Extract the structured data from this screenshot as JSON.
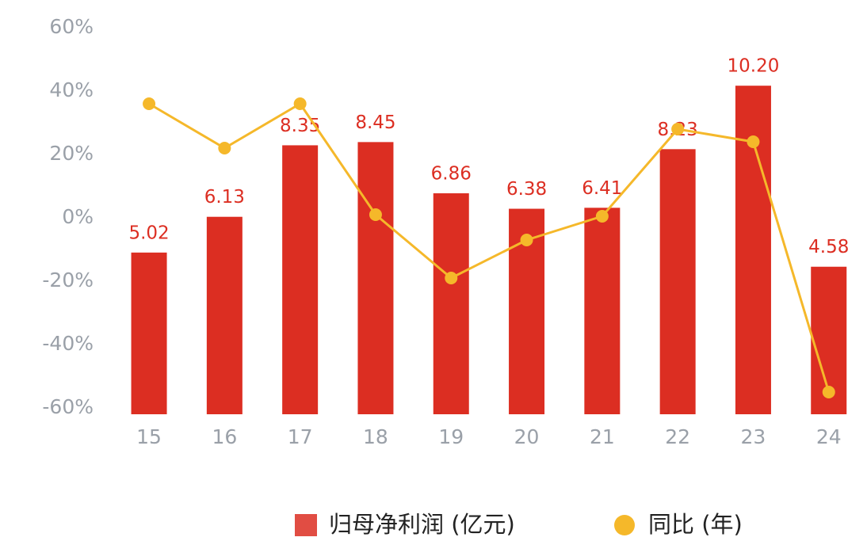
{
  "chart_data": {
    "type": "bar-line",
    "categories": [
      "15",
      "16",
      "17",
      "18",
      "19",
      "20",
      "21",
      "22",
      "23",
      "24"
    ],
    "series": [
      {
        "name": "归母净利润 (亿元)",
        "type": "bar",
        "axis": "y2",
        "color": "#dc2e22",
        "values": [
          5.02,
          6.13,
          8.35,
          8.45,
          6.86,
          6.38,
          6.41,
          8.23,
          10.2,
          4.58
        ],
        "value_labels": [
          "5.02",
          "6.13",
          "8.35",
          "8.45",
          "6.86",
          "6.38",
          "6.41",
          "8.23",
          "10.20",
          "4.58"
        ]
      },
      {
        "name": "同比 (年)",
        "type": "line",
        "color": "#f5b82a",
        "values": [
          36,
          22,
          36,
          1,
          -19,
          -7,
          0.5,
          28,
          24,
          -55
        ]
      }
    ],
    "ylim": [
      -60,
      60
    ],
    "yticks": [
      {
        "value": 60,
        "label": "60%"
      },
      {
        "value": 40,
        "label": "40%"
      },
      {
        "value": 20,
        "label": "20%"
      },
      {
        "value": 0,
        "label": "0%"
      },
      {
        "value": -20,
        "label": "-20%"
      },
      {
        "value": -40,
        "label": "-40%"
      },
      {
        "value": -60,
        "label": "-60%"
      }
    ],
    "y2lim": [
      0,
      12
    ]
  }
}
